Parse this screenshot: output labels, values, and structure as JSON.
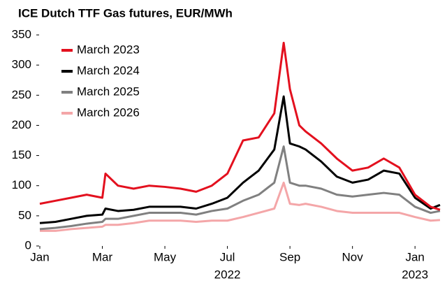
{
  "chart_data": {
    "type": "line",
    "title": "ICE Dutch TTF Gas futures, EUR/MWh",
    "x": [
      0,
      0.5,
      1,
      1.5,
      2,
      2.1,
      2.5,
      3,
      3.5,
      4,
      4.5,
      5,
      5.5,
      6,
      6.5,
      7,
      7.5,
      7.8,
      8,
      8.3,
      8.5,
      9,
      9.5,
      10,
      10.5,
      11,
      11.5,
      12,
      12.5,
      12.8
    ],
    "xlim": [
      0,
      12.8
    ],
    "xticks": [
      {
        "value": 0,
        "label": "Jan"
      },
      {
        "value": 2,
        "label": "Mar"
      },
      {
        "value": 4,
        "label": "May"
      },
      {
        "value": 6,
        "label": "Jul"
      },
      {
        "value": 8,
        "label": "Sep"
      },
      {
        "value": 10,
        "label": "Nov"
      },
      {
        "value": 12,
        "label": "Jan"
      }
    ],
    "x_year_labels": [
      {
        "value": 6,
        "label": "2022"
      },
      {
        "value": 12,
        "label": "2023"
      }
    ],
    "ylim": [
      0,
      350
    ],
    "yticks": [
      0,
      50,
      100,
      150,
      200,
      250,
      300,
      350
    ],
    "legend": "upper left",
    "series": [
      {
        "name": "March 2023",
        "color": "#e3101e",
        "values": [
          70,
          75,
          80,
          85,
          80,
          120,
          100,
          95,
          100,
          98,
          95,
          90,
          100,
          120,
          175,
          180,
          220,
          337,
          260,
          200,
          190,
          170,
          145,
          125,
          130,
          145,
          130,
          85,
          65,
          60
        ]
      },
      {
        "name": "March 2024",
        "color": "#000000",
        "values": [
          38,
          40,
          45,
          50,
          52,
          62,
          58,
          60,
          65,
          65,
          65,
          62,
          70,
          80,
          105,
          125,
          160,
          248,
          170,
          165,
          160,
          140,
          115,
          105,
          110,
          125,
          120,
          80,
          62,
          68
        ]
      },
      {
        "name": "March 2025",
        "color": "#808080",
        "values": [
          28,
          30,
          33,
          37,
          40,
          45,
          45,
          50,
          55,
          55,
          55,
          52,
          58,
          62,
          75,
          85,
          105,
          165,
          105,
          100,
          100,
          95,
          85,
          82,
          85,
          88,
          85,
          65,
          55,
          58
        ]
      },
      {
        "name": "March 2026",
        "color": "#f4a6a8",
        "values": [
          25,
          25,
          28,
          30,
          32,
          35,
          35,
          38,
          42,
          42,
          42,
          40,
          42,
          42,
          48,
          55,
          62,
          105,
          70,
          68,
          70,
          65,
          58,
          55,
          55,
          55,
          55,
          48,
          42,
          43
        ]
      }
    ]
  }
}
